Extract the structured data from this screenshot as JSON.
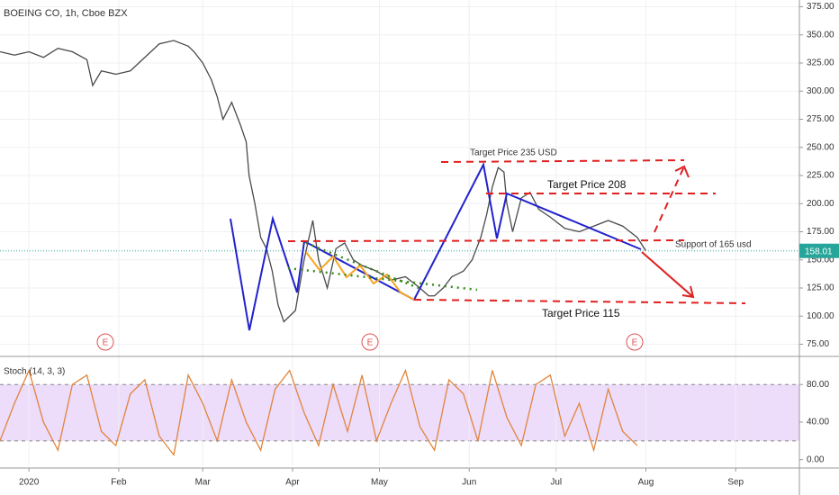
{
  "chart_data": [
    {
      "type": "line",
      "title": "BOEING CO, 1h, Cboe BZX",
      "color": "#4a4a4a",
      "x": [
        -10,
        -5,
        0,
        5,
        10,
        15,
        20,
        22,
        25,
        30,
        35,
        40,
        45,
        50,
        55,
        57,
        60,
        63,
        65,
        67,
        70,
        73,
        75,
        76,
        78,
        80,
        82,
        84,
        86,
        88,
        90,
        92,
        95,
        98,
        100,
        103,
        106,
        109,
        112,
        115,
        120,
        125,
        130,
        135,
        138,
        140,
        143,
        146,
        150,
        153,
        156,
        158,
        160,
        162,
        164,
        165,
        167,
        170,
        173,
        176,
        180,
        185,
        190,
        195,
        200,
        205,
        210,
        213
      ],
      "values": [
        335,
        332,
        335,
        330,
        338,
        335,
        328,
        305,
        318,
        315,
        318,
        330,
        342,
        345,
        340,
        335,
        325,
        310,
        295,
        275,
        290,
        270,
        255,
        225,
        200,
        170,
        160,
        140,
        110,
        95,
        100,
        105,
        150,
        185,
        150,
        125,
        160,
        165,
        150,
        145,
        140,
        132,
        135,
        125,
        118,
        118,
        125,
        135,
        140,
        150,
        170,
        190,
        215,
        232,
        228,
        200,
        175,
        205,
        210,
        195,
        188,
        178,
        175,
        180,
        185,
        180,
        170,
        158
      ],
      "xlim": [
        -10,
        266
      ],
      "ylim": [
        65,
        381
      ],
      "yticks": [
        {
          "value": 75,
          "label": "75.00"
        },
        {
          "value": 100,
          "label": "100.00"
        },
        {
          "value": 125,
          "label": "125.00"
        },
        {
          "value": 150,
          "label": "150.00"
        },
        {
          "value": 175,
          "label": "175.00"
        },
        {
          "value": 200,
          "label": "200.00"
        },
        {
          "value": 225,
          "label": "225.00"
        },
        {
          "value": 250,
          "label": "250.00"
        },
        {
          "value": 275,
          "label": "275.00"
        },
        {
          "value": 300,
          "label": "300.00"
        },
        {
          "value": 325,
          "label": "325.00"
        },
        {
          "value": 350,
          "label": "350.00"
        },
        {
          "value": 375,
          "label": "375.00"
        }
      ],
      "last_price": 158.01,
      "grid": true,
      "annotations": [
        "Target Price 235 USD",
        "Target Price 208",
        "Support of 165 usd",
        "Target Price 115"
      ],
      "events": [
        "E",
        "E",
        "E"
      ]
    },
    {
      "type": "line",
      "title": "Stoch (14, 3, 3)",
      "color": "#e0853c",
      "x": [
        -10,
        -5,
        0,
        5,
        10,
        15,
        20,
        25,
        30,
        35,
        40,
        45,
        50,
        55,
        60,
        65,
        70,
        75,
        80,
        85,
        90,
        95,
        100,
        105,
        110,
        115,
        120,
        125,
        130,
        135,
        140,
        145,
        150,
        155,
        160,
        165,
        170,
        175,
        180,
        185,
        190,
        195,
        200,
        205,
        210
      ],
      "values": [
        20,
        60,
        95,
        40,
        10,
        80,
        90,
        30,
        15,
        70,
        85,
        25,
        5,
        90,
        60,
        20,
        85,
        40,
        10,
        75,
        95,
        50,
        15,
        80,
        30,
        90,
        20,
        60,
        95,
        35,
        10,
        85,
        70,
        20,
        95,
        45,
        15,
        80,
        90,
        25,
        60,
        10,
        75,
        30,
        15
      ],
      "xlim": [
        -10,
        266
      ],
      "ylim": [
        -7,
        108
      ],
      "band": [
        20,
        80
      ],
      "band_color": "#e1c4f7",
      "yticks": [
        {
          "value": 0,
          "label": "0.00"
        },
        {
          "value": 40,
          "label": "40.00"
        },
        {
          "value": 80,
          "label": "80.00"
        }
      ],
      "xticks": [
        {
          "value": 0,
          "label": "2020"
        },
        {
          "value": 31,
          "label": "Feb"
        },
        {
          "value": 60,
          "label": "Mar"
        },
        {
          "value": 91,
          "label": "Apr"
        },
        {
          "value": 121,
          "label": "May"
        },
        {
          "value": 152,
          "label": "Jun"
        },
        {
          "value": 182,
          "label": "Jul"
        },
        {
          "value": 213,
          "label": "Aug"
        },
        {
          "value": 244,
          "label": "Sep"
        }
      ]
    }
  ]
}
